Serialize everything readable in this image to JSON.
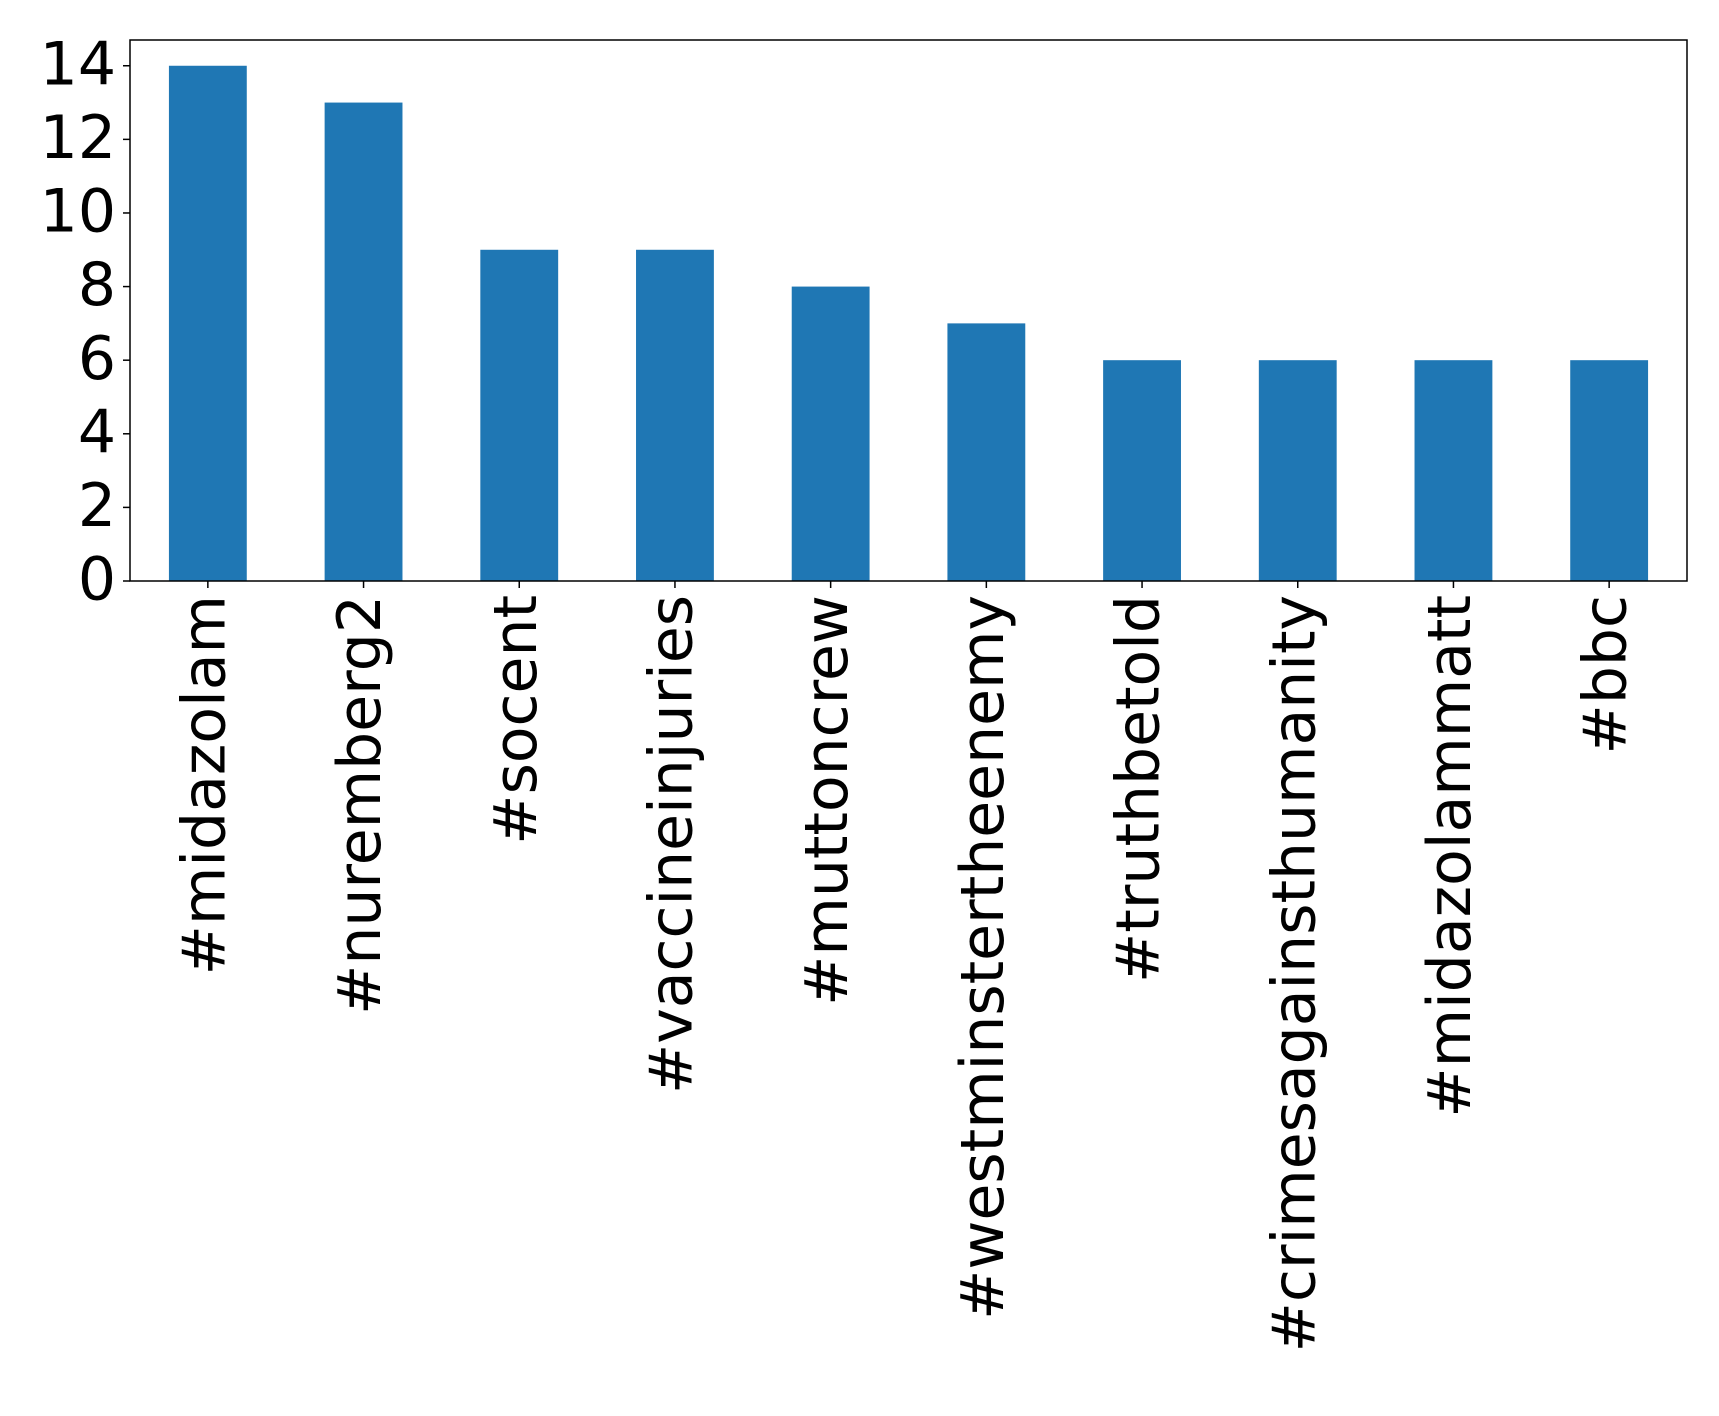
{
  "chart_data": {
    "type": "bar",
    "categories": [
      "#midazolam",
      "#nuremberg2",
      "#socent",
      "#vaccineinjuries",
      "#muttoncrew",
      "#westminstertheenemy",
      "#truthbetold",
      "#crimesagainsthumanity",
      "#midazolammatt",
      "#bbc"
    ],
    "values": [
      14,
      13,
      9,
      9,
      8,
      7,
      6,
      6,
      6,
      6
    ],
    "color": "#1f77b4",
    "ylim": [
      0,
      14.7
    ],
    "yticks": [
      0,
      2,
      4,
      6,
      8,
      10,
      12,
      14
    ],
    "grid": false
  }
}
